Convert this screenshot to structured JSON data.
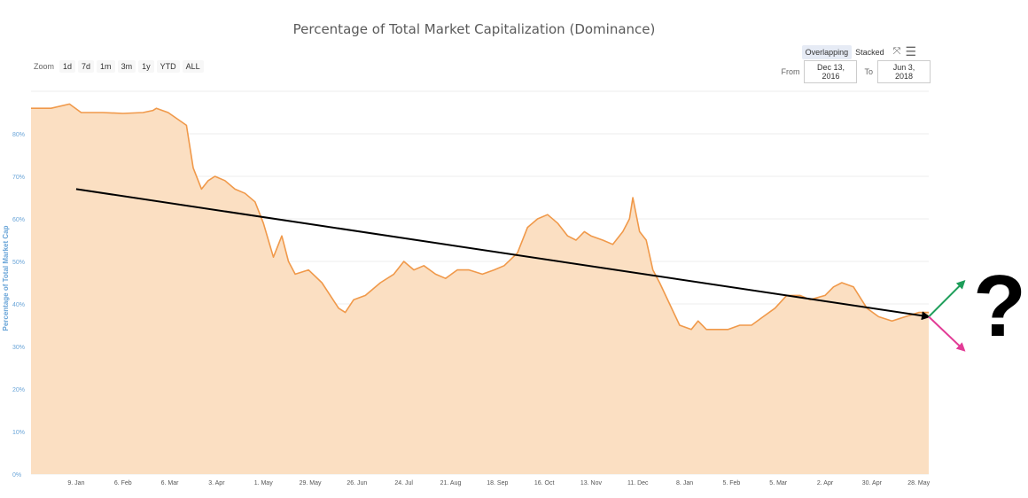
{
  "header": {
    "title": "Percentage of Total Market Capitalization (Dominance)"
  },
  "zoom": {
    "label": "Zoom",
    "buttons": [
      "1d",
      "7d",
      "1m",
      "3m",
      "1y",
      "YTD",
      "ALL"
    ]
  },
  "view_toggle": {
    "overlapping": "Overlapping",
    "stacked": "Stacked",
    "active": "Overlapping"
  },
  "range": {
    "from_label": "From",
    "from_value": "Dec 13, 2016",
    "to_label": "To",
    "to_value": "Jun 3, 2018"
  },
  "annotation": {
    "question_mark": "?",
    "trend_color": "#000000",
    "up_arrow_color": "#1e9e5a",
    "down_arrow_color": "#e23c96"
  },
  "chart_data": {
    "type": "area",
    "title": "Percentage of Total Market Capitalization (Dominance)",
    "ylabel": "Percentage of Total Market Cap",
    "xlabel": "",
    "ylim": [
      0,
      90
    ],
    "yticks": [
      0,
      10,
      20,
      30,
      40,
      50,
      60,
      70,
      80
    ],
    "ytick_labels": [
      "0%",
      "10%",
      "20%",
      "30%",
      "40%",
      "50%",
      "60%",
      "70%",
      "80%"
    ],
    "xlim": [
      "2016-12-13",
      "2018-06-03"
    ],
    "xticks": [
      "2017-01-09",
      "2017-02-06",
      "2017-03-06",
      "2017-04-03",
      "2017-05-01",
      "2017-05-29",
      "2017-06-26",
      "2017-07-24",
      "2017-08-21",
      "2017-09-18",
      "2017-10-16",
      "2017-11-13",
      "2017-12-11",
      "2018-01-08",
      "2018-02-05",
      "2018-03-05",
      "2018-04-02",
      "2018-04-30",
      "2018-05-28"
    ],
    "xtick_labels": [
      "9. Jan",
      "6. Feb",
      "6. Mar",
      "3. Apr",
      "1. May",
      "29. May",
      "26. Jun",
      "24. Jul",
      "21. Aug",
      "18. Sep",
      "16. Oct",
      "13. Nov",
      "11. Dec",
      "8. Jan",
      "5. Feb",
      "5. Mar",
      "2. Apr",
      "30. Apr",
      "28. May"
    ],
    "grid": true,
    "fill_color": "#fbdfc2",
    "line_color": "#f0994a",
    "series": [
      {
        "x": [
          "2016-12-13",
          "2016-12-25",
          "2017-01-05",
          "2017-01-12",
          "2017-01-25",
          "2017-02-06",
          "2017-02-18",
          "2017-02-24",
          "2017-02-26",
          "2017-03-05",
          "2017-03-16",
          "2017-03-20",
          "2017-03-25",
          "2017-03-29",
          "2017-04-02",
          "2017-04-08",
          "2017-04-14",
          "2017-04-20",
          "2017-04-26",
          "2017-05-01",
          "2017-05-07",
          "2017-05-12",
          "2017-05-16",
          "2017-05-20",
          "2017-05-28",
          "2017-06-05",
          "2017-06-15",
          "2017-06-19",
          "2017-06-24",
          "2017-07-01",
          "2017-07-10",
          "2017-07-18",
          "2017-07-24",
          "2017-07-30",
          "2017-08-05",
          "2017-08-12",
          "2017-08-18",
          "2017-08-25",
          "2017-09-01",
          "2017-09-09",
          "2017-09-16",
          "2017-09-22",
          "2017-09-30",
          "2017-10-06",
          "2017-10-12",
          "2017-10-18",
          "2017-10-24",
          "2017-10-30",
          "2017-11-04",
          "2017-11-09",
          "2017-11-13",
          "2017-11-20",
          "2017-11-26",
          "2017-12-02",
          "2017-12-06",
          "2017-12-08",
          "2017-12-12",
          "2017-12-16",
          "2017-12-20",
          "2017-12-24",
          "2017-12-30",
          "2018-01-05",
          "2018-01-12",
          "2018-01-16",
          "2018-01-21",
          "2018-01-27",
          "2018-02-03",
          "2018-02-10",
          "2018-02-17",
          "2018-02-24",
          "2018-03-03",
          "2018-03-10",
          "2018-03-18",
          "2018-03-24",
          "2018-04-02",
          "2018-04-07",
          "2018-04-12",
          "2018-04-19",
          "2018-04-27",
          "2018-05-04",
          "2018-05-12",
          "2018-05-20",
          "2018-05-28",
          "2018-06-03"
        ],
        "values": [
          86,
          86,
          87,
          85,
          85,
          84.8,
          85,
          85.5,
          86,
          85,
          82,
          72,
          67,
          69,
          70,
          69,
          67,
          66,
          64,
          59,
          51,
          56,
          50,
          47,
          48,
          45,
          39,
          38,
          41,
          42,
          45,
          47,
          50,
          48,
          49,
          47,
          46,
          48,
          48,
          47,
          48,
          49,
          52,
          58,
          60,
          61,
          59,
          56,
          55,
          57,
          56,
          55,
          54,
          57,
          60,
          65,
          57,
          55,
          48,
          45,
          40,
          35,
          34,
          36,
          34,
          34,
          34,
          35,
          35,
          37,
          39,
          42,
          42,
          41,
          42,
          44,
          45,
          44,
          39,
          37,
          36,
          37,
          38,
          38
        ]
      }
    ],
    "annotations": {
      "trend_line": {
        "from": [
          "2017-01-09",
          67
        ],
        "to": [
          "2018-06-03",
          37
        ]
      }
    }
  }
}
